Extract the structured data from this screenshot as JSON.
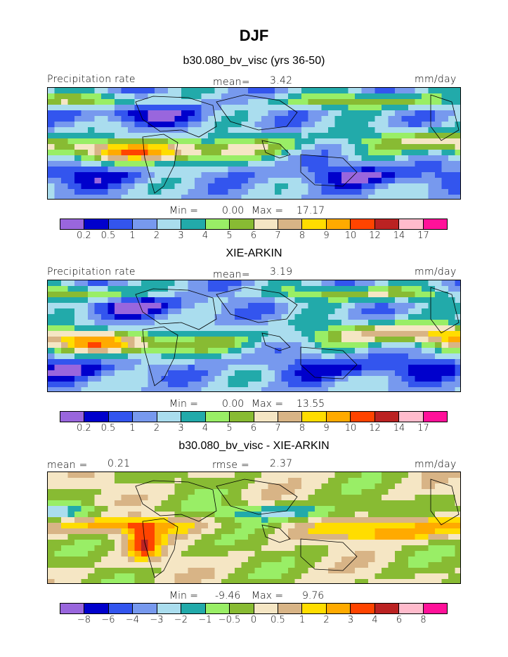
{
  "title": "DJF",
  "panels": [
    {
      "title": "b30.080_bv_visc (yrs 36-50)",
      "left_label": "Precipitation rate",
      "center_label": "mean=",
      "center_value": "3.42",
      "right_label": "mm/day",
      "min_label": "Min =",
      "min_value": "0.00",
      "max_label": "Max =",
      "max_value": "17.17",
      "ticks": [
        "0.2",
        "0.5",
        "1",
        "2",
        "3",
        "4",
        "5",
        "6",
        "7",
        "8",
        "9",
        "10",
        "12",
        "14",
        "17"
      ],
      "palette": "precip"
    },
    {
      "title": "XIE-ARKIN",
      "left_label": "Precipitation rate",
      "center_label": "mean=",
      "center_value": "3.19",
      "right_label": "mm/day",
      "min_label": "Min =",
      "min_value": "0.00",
      "max_label": "Max =",
      "max_value": "13.55",
      "ticks": [
        "0.2",
        "0.5",
        "1",
        "2",
        "3",
        "4",
        "5",
        "6",
        "7",
        "8",
        "9",
        "10",
        "12",
        "14",
        "17"
      ],
      "palette": "precip"
    },
    {
      "title": "b30.080_bv_visc - XIE-ARKIN",
      "left_label": "mean =",
      "left_value": "0.21",
      "center_label": "rmse =",
      "center_value": "2.37",
      "right_label": "mm/day",
      "min_label": "Min =",
      "min_value": "-9.46",
      "max_label": "Max =",
      "max_value": "9.76",
      "ticks": [
        "−8",
        "−6",
        "−4",
        "−3",
        "−2",
        "−1",
        "−0.5",
        "0",
        "0.5",
        "1",
        "2",
        "3",
        "4",
        "6",
        "8"
      ],
      "palette": "diff"
    }
  ],
  "colors": {
    "precip": [
      "#9966dd",
      "#0000cc",
      "#3355ee",
      "#7799ee",
      "#aaddee",
      "#22aaaa",
      "#99ee66",
      "#88bb33",
      "#f5e6c4",
      "#d8b486",
      "#ffdd00",
      "#ffaa00",
      "#ff4400",
      "#bb2222",
      "#ffbbcc",
      "#ff1199"
    ],
    "diff": [
      "#9966dd",
      "#0000cc",
      "#3355ee",
      "#7799ee",
      "#aaddee",
      "#22aaaa",
      "#99ee66",
      "#88bb33",
      "#f5e6c4",
      "#d8b486",
      "#ffdd00",
      "#ffaa00",
      "#ff4400",
      "#bb2222",
      "#ffbbcc",
      "#ff1199"
    ]
  }
}
